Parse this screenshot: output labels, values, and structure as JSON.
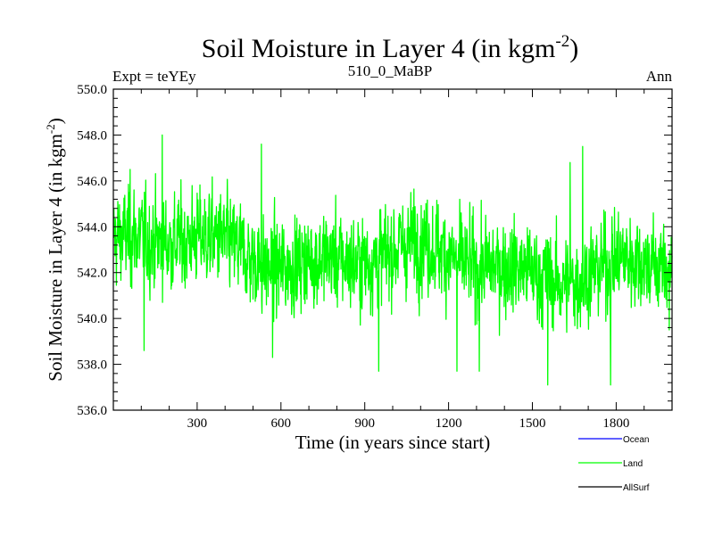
{
  "chart_data": {
    "type": "line",
    "title": "Soil Moisture in Layer 4 (in kgm",
    "title_sup": "-2",
    "title_suffix": ")",
    "subtitle_left": "Expt = teYEy",
    "subtitle_center": "510_0_MaBP",
    "subtitle_right": "Ann",
    "xlabel": "Time (in years since start)",
    "ylabel": "Soil Moisture in Layer 4 (in kgm",
    "ylabel_sup": "-2",
    "ylabel_suffix": ")",
    "xlim": [
      0,
      2000
    ],
    "ylim": [
      536,
      550
    ],
    "xticks": [
      300,
      600,
      900,
      1200,
      1500,
      1800
    ],
    "xtick_labels": [
      "300",
      "600",
      "900",
      "1200",
      "1500",
      "1800"
    ],
    "yticks": [
      536,
      538,
      540,
      542,
      544,
      546,
      548,
      550
    ],
    "ytick_labels": [
      "536.0",
      "538.0",
      "540.0",
      "542.0",
      "544.0",
      "546.0",
      "548.0",
      "550.0"
    ],
    "legend": [
      {
        "name": "Ocean",
        "color": "#0000ff"
      },
      {
        "name": "Land",
        "color": "#00ff00"
      },
      {
        "name": "AllSurf",
        "color": "#000000"
      }
    ],
    "series": [
      {
        "name": "Land",
        "color": "#00ff00",
        "x_start": 1,
        "x_end": 2000,
        "n_points": 2000,
        "mean_start": 543.2,
        "mean_end": 542.0,
        "noise_amplitude": 1.8,
        "min": 537.0,
        "max": 548.0,
        "extremes": [
          {
            "x": 60,
            "y": 546.5
          },
          {
            "x": 110,
            "y": 538.6
          },
          {
            "x": 175,
            "y": 548.0
          },
          {
            "x": 530,
            "y": 547.6
          },
          {
            "x": 570,
            "y": 538.3
          },
          {
            "x": 950,
            "y": 537.7
          },
          {
            "x": 1230,
            "y": 537.7
          },
          {
            "x": 1310,
            "y": 537.7
          },
          {
            "x": 1555,
            "y": 537.1
          },
          {
            "x": 1635,
            "y": 546.8
          },
          {
            "x": 1680,
            "y": 547.5
          },
          {
            "x": 1780,
            "y": 537.1
          },
          {
            "x": 1990,
            "y": 539.5
          }
        ]
      }
    ]
  }
}
